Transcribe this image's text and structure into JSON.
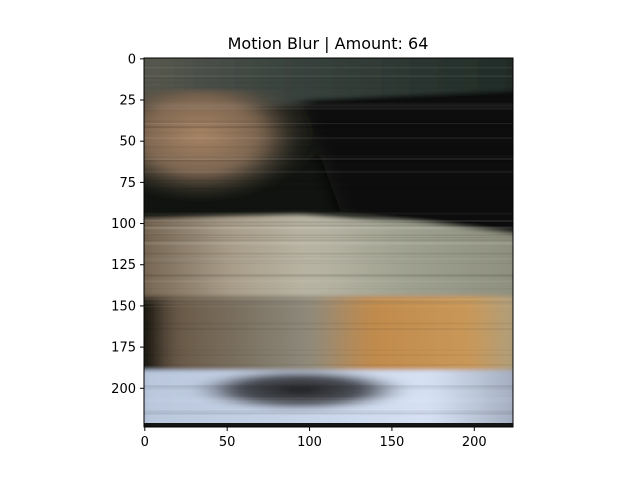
{
  "figure": {
    "title": "Motion Blur | Amount: 64"
  },
  "image_panel": {
    "content": "motion-blurred photograph",
    "colors": {
      "top_band": "#25302c",
      "upper_left_tan": "#9a7a5e",
      "dark_right": "#0b100d",
      "mid_band_gray": "#9c9d90",
      "orange_streak": "#c98c48",
      "bottom_light_blue": "#c9d8ee",
      "bottom_dark_blob": "#2b2b2c"
    }
  },
  "chart_data": {
    "type": "image",
    "title": "Motion Blur | Amount: 64",
    "xlabel": "",
    "ylabel": "",
    "xlim": [
      -0.5,
      223.5
    ],
    "ylim": [
      223.5,
      -0.5
    ],
    "x_ticks": [
      0,
      50,
      100,
      150,
      200
    ],
    "y_ticks": [
      0,
      25,
      50,
      75,
      100,
      125,
      150,
      175,
      200
    ],
    "x_tick_labels": [
      "0",
      "50",
      "100",
      "150",
      "200"
    ],
    "y_tick_labels": [
      "0",
      "25",
      "50",
      "75",
      "100",
      "125",
      "150",
      "175",
      "200"
    ],
    "grid": false
  }
}
